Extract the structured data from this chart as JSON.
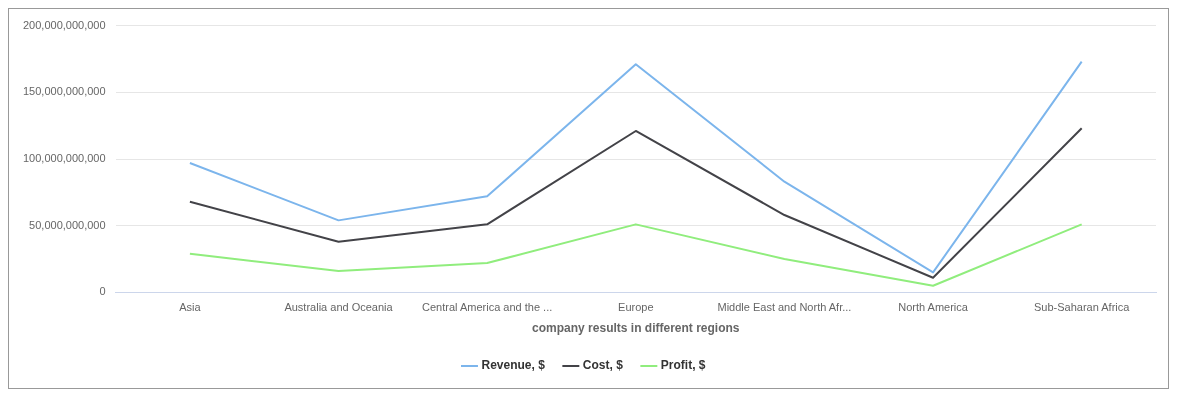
{
  "chart_data": {
    "type": "line",
    "xlabel": "company results in different regions",
    "categories": [
      "Asia",
      "Australia and Oceania",
      "Central America and the ...",
      "Europe",
      "Middle East and North Afr...",
      "North America",
      "Sub-Saharan Africa"
    ],
    "series": [
      {
        "name": "Revenue, $",
        "color": "#7cb5ec",
        "values": [
          97000000000,
          54000000000,
          72000000000,
          171000000000,
          83000000000,
          15000000000,
          173000000000
        ]
      },
      {
        "name": "Cost, $",
        "color": "#434348",
        "values": [
          68000000000,
          38000000000,
          51000000000,
          121000000000,
          58000000000,
          11000000000,
          123000000000
        ]
      },
      {
        "name": "Profit, $",
        "color": "#90ed7d",
        "values": [
          29000000000,
          16000000000,
          22000000000,
          51000000000,
          25000000000,
          5000000000,
          51000000000
        ]
      }
    ],
    "ylim": [
      0,
      200000000000
    ],
    "yticks": [
      0,
      {
        "value": 50000000000,
        "label": "50,000,000,000"
      },
      {
        "value": 100000000000,
        "label": "100,000,000,000"
      },
      {
        "value": 150000000000,
        "label": "150,000,000,000"
      },
      {
        "value": 200000000000,
        "label": "200,000,000,000"
      }
    ],
    "grid": "y",
    "legend": "bottom",
    "marker": "none",
    "line_style": "solid"
  }
}
